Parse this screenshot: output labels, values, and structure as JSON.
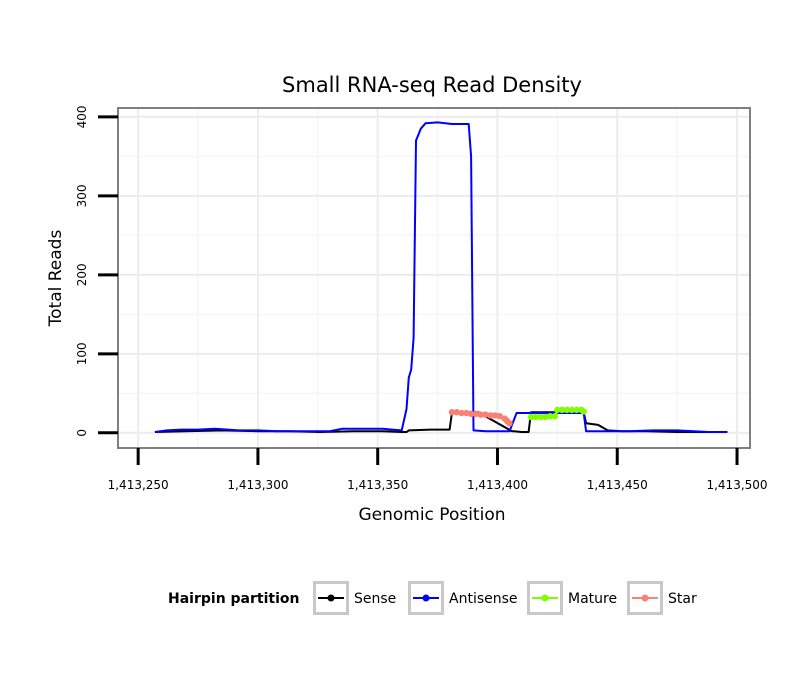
{
  "chart_data": {
    "type": "line",
    "title": "Small RNA-seq Read Density",
    "xlabel": "Genomic Position",
    "ylabel": "Total Reads",
    "xlim": [
      1413242,
      1413505
    ],
    "ylim": [
      -18,
      410
    ],
    "x_ticks": [
      1413250,
      1413300,
      1413350,
      1413400,
      1413450,
      1413500
    ],
    "x_tick_labels": [
      "1,413,250",
      "1,413,300",
      "1,413,350",
      "1,413,400",
      "1,413,450",
      "1,413,500"
    ],
    "y_ticks": [
      0,
      100,
      200,
      300,
      400
    ],
    "y_tick_labels": [
      "0",
      "100",
      "200",
      "300",
      "400"
    ],
    "legend": {
      "title": "Hairpin partition",
      "position": "bottom",
      "entries": [
        "Sense",
        "Antisense",
        "Mature",
        "Star"
      ]
    },
    "series": [
      {
        "name": "Sense",
        "color": "#000000",
        "markers": false,
        "x": [
          1413257,
          1413270,
          1413285,
          1413300,
          1413313,
          1413326,
          1413340,
          1413352,
          1413360,
          1413362,
          1413363,
          1413372,
          1413380,
          1413381,
          1413392,
          1413406,
          1413407,
          1413410,
          1413413,
          1413414,
          1413436,
          1413437,
          1413442,
          1413446,
          1413452,
          1413462,
          1413475,
          1413485,
          1413496
        ],
        "values": [
          1,
          2,
          3,
          2,
          2,
          1,
          2,
          2,
          1,
          1,
          3,
          4,
          4,
          26,
          26,
          2,
          2,
          1,
          1,
          26,
          26,
          12,
          10,
          3,
          2,
          2,
          1,
          1,
          1
        ]
      },
      {
        "name": "Antisense",
        "color": "#0000ff",
        "markers": false,
        "x": [
          1413257,
          1413262,
          1413268,
          1413275,
          1413282,
          1413292,
          1413300,
          1413308,
          1413318,
          1413330,
          1413335,
          1413345,
          1413352,
          1413356,
          1413360,
          1413362,
          1413363,
          1413364,
          1413365,
          1413366,
          1413368,
          1413370,
          1413375,
          1413381,
          1413386,
          1413388,
          1413389,
          1413390,
          1413395,
          1413400,
          1413405,
          1413408,
          1413420,
          1413430,
          1413436,
          1413437,
          1413442,
          1413448,
          1413455,
          1413465,
          1413475,
          1413482,
          1413488,
          1413496
        ],
        "values": [
          1,
          3,
          4,
          4,
          5,
          3,
          3,
          2,
          2,
          2,
          5,
          5,
          5,
          4,
          3,
          30,
          70,
          80,
          120,
          370,
          385,
          392,
          393,
          391,
          391,
          391,
          350,
          3,
          2,
          2,
          2,
          25,
          25,
          25,
          25,
          2,
          2,
          2,
          2,
          3,
          3,
          2,
          1,
          1
        ]
      },
      {
        "name": "Mature",
        "color": "#7fff00",
        "markers": true,
        "x": [
          1413414,
          1413416,
          1413418,
          1413420,
          1413422,
          1413424,
          1413425,
          1413427,
          1413429,
          1413431,
          1413433,
          1413435,
          1413436
        ],
        "values": [
          20,
          20,
          20,
          20,
          21,
          21,
          29,
          29,
          29,
          29,
          29,
          29,
          27
        ]
      },
      {
        "name": "Star",
        "color": "#fa8072",
        "markers": true,
        "x": [
          1413381,
          1413383,
          1413385,
          1413387,
          1413389,
          1413391,
          1413393,
          1413395,
          1413397,
          1413399,
          1413401,
          1413403,
          1413404,
          1413405
        ],
        "values": [
          26,
          26,
          25,
          25,
          24,
          24,
          23,
          23,
          22,
          22,
          21,
          18,
          15,
          12
        ]
      }
    ]
  }
}
